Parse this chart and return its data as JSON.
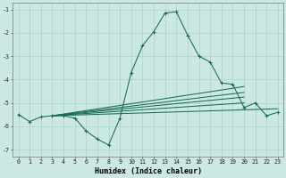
{
  "xlabel": "Humidex (Indice chaleur)",
  "xlim": [
    -0.5,
    23.5
  ],
  "ylim": [
    -7.3,
    -0.7
  ],
  "yticks": [
    -7,
    -6,
    -5,
    -4,
    -3,
    -2,
    -1
  ],
  "xticks": [
    0,
    1,
    2,
    3,
    4,
    5,
    6,
    7,
    8,
    9,
    10,
    11,
    12,
    13,
    14,
    15,
    16,
    17,
    18,
    19,
    20,
    21,
    22,
    23
  ],
  "line_color": "#1a6b5a",
  "bg_color": "#cce8e3",
  "grid_color": "#a8d4cc",
  "main_x": [
    0,
    1,
    2,
    3,
    4,
    5,
    6,
    7,
    8,
    9,
    10,
    11,
    12,
    13,
    14,
    15,
    16,
    17,
    18,
    19,
    20,
    21,
    22,
    23
  ],
  "main_y": [
    -5.5,
    -5.8,
    -5.6,
    -5.55,
    -5.55,
    -5.65,
    -6.2,
    -6.55,
    -6.8,
    -5.65,
    -3.7,
    -2.55,
    -1.95,
    -1.15,
    -1.1,
    -2.1,
    -3.0,
    -3.25,
    -4.15,
    -4.2,
    -5.2,
    -5.0,
    -5.55,
    -5.4
  ],
  "trend_lines": [
    {
      "x": [
        3,
        20
      ],
      "y": [
        -5.55,
        -4.3
      ]
    },
    {
      "x": [
        3,
        20
      ],
      "y": [
        -5.55,
        -4.55
      ]
    },
    {
      "x": [
        3,
        20
      ],
      "y": [
        -5.55,
        -4.75
      ]
    },
    {
      "x": [
        3,
        20
      ],
      "y": [
        -5.55,
        -5.0
      ]
    },
    {
      "x": [
        3,
        23
      ],
      "y": [
        -5.55,
        -5.25
      ]
    }
  ]
}
